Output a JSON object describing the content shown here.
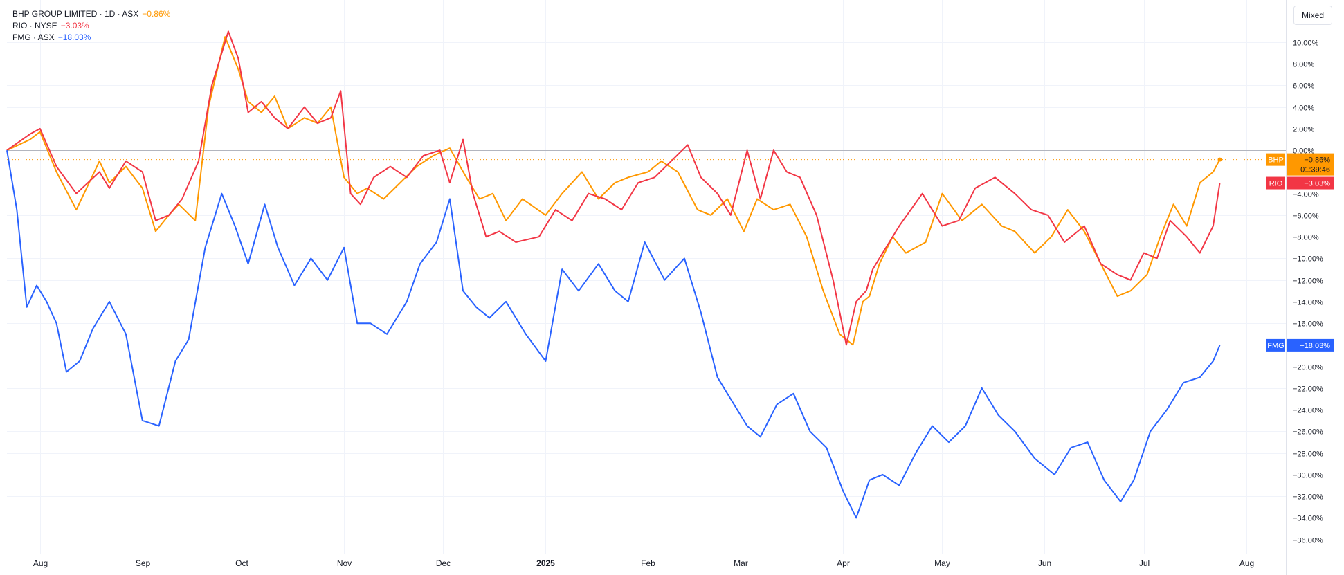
{
  "legend": {
    "bhp": {
      "label": "BHP GROUP LIMITED · 1D · ASX",
      "change": "−0.86%"
    },
    "rio": {
      "label": "RIO · NYSE",
      "change": "−3.03%"
    },
    "fmg": {
      "label": "FMG · ASX",
      "change": "−18.03%"
    }
  },
  "scale_mode_label": "Mixed",
  "countdown": "01:39:46",
  "chart_data": {
    "type": "line",
    "x_ticks": [
      "Aug",
      "Sep",
      "Oct",
      "Nov",
      "Dec",
      "2025",
      "Feb",
      "Mar",
      "Apr",
      "May",
      "Jun",
      "Jul",
      "Aug"
    ],
    "y_ticks": [
      "10.00%",
      "8.00%",
      "6.00%",
      "4.00%",
      "2.00%",
      "0.00%",
      "−2.00%",
      "−4.00%",
      "−6.00%",
      "−8.00%",
      "−10.00%",
      "−12.00%",
      "−14.00%",
      "−16.00%",
      "−18.00%",
      "−20.00%",
      "−22.00%",
      "−24.00%",
      "−26.00%",
      "−28.00%",
      "−30.00%",
      "−32.00%",
      "−34.00%",
      "−36.00%"
    ],
    "x_domain": [
      "2024-07-22",
      "2025-08-13"
    ],
    "y_domain": [
      -37.3,
      13.9
    ],
    "baseline": 0,
    "grid": true,
    "series": [
      {
        "name": "BHP",
        "color": "#ff9800",
        "last_label": "−0.86%",
        "x": [
          "2024-07-22",
          "2024-07-29",
          "2024-08-01",
          "2024-08-06",
          "2024-08-12",
          "2024-08-19",
          "2024-08-22",
          "2024-08-27",
          "2024-09-01",
          "2024-09-05",
          "2024-09-09",
          "2024-09-12",
          "2024-09-17",
          "2024-09-21",
          "2024-09-26",
          "2024-09-30",
          "2024-10-03",
          "2024-10-07",
          "2024-10-11",
          "2024-10-15",
          "2024-10-20",
          "2024-10-24",
          "2024-10-28",
          "2024-11-01",
          "2024-11-05",
          "2024-11-08",
          "2024-11-13",
          "2024-11-18",
          "2024-11-23",
          "2024-11-28",
          "2024-12-03",
          "2024-12-08",
          "2024-12-12",
          "2024-12-16",
          "2024-12-20",
          "2024-12-25",
          "2025-01-01",
          "2025-01-06",
          "2025-01-12",
          "2025-01-17",
          "2025-01-22",
          "2025-01-26",
          "2025-02-01",
          "2025-02-05",
          "2025-02-10",
          "2025-02-16",
          "2025-02-20",
          "2025-02-25",
          "2025-03-02",
          "2025-03-06",
          "2025-03-11",
          "2025-03-16",
          "2025-03-21",
          "2025-03-26",
          "2025-03-31",
          "2025-04-04",
          "2025-04-07",
          "2025-04-09",
          "2025-04-12",
          "2025-04-16",
          "2025-04-20",
          "2025-04-26",
          "2025-05-01",
          "2025-05-07",
          "2025-05-13",
          "2025-05-19",
          "2025-05-23",
          "2025-05-29",
          "2025-06-03",
          "2025-06-08",
          "2025-06-13",
          "2025-06-18",
          "2025-06-23",
          "2025-06-27",
          "2025-07-02",
          "2025-07-06",
          "2025-07-10",
          "2025-07-14",
          "2025-07-18",
          "2025-07-22",
          "2025-07-24"
        ],
        "y": [
          0.0,
          1.0,
          1.7,
          -2.0,
          -5.5,
          -1.0,
          -3.0,
          -1.5,
          -3.5,
          -7.5,
          -6.0,
          -5.0,
          -6.5,
          4.0,
          10.5,
          7.5,
          4.5,
          3.5,
          5.0,
          2.0,
          3.0,
          2.5,
          4.0,
          -2.5,
          -4.0,
          -3.5,
          -4.5,
          -3.0,
          -1.5,
          -0.5,
          0.2,
          -2.5,
          -4.5,
          -4.0,
          -6.5,
          -4.5,
          -6.0,
          -4.0,
          -2.0,
          -4.5,
          -3.0,
          -2.5,
          -2.0,
          -1.0,
          -2.0,
          -5.5,
          -6.0,
          -4.5,
          -7.5,
          -4.5,
          -5.5,
          -5.0,
          -8.0,
          -13.0,
          -17.0,
          -18.0,
          -14.0,
          -13.5,
          -10.5,
          -8.0,
          -9.5,
          -8.5,
          -4.0,
          -6.5,
          -5.0,
          -7.0,
          -7.5,
          -9.5,
          -8.0,
          -5.5,
          -7.5,
          -10.5,
          -13.5,
          -13.0,
          -11.5,
          -8.0,
          -5.0,
          -7.0,
          -3.0,
          -2.0,
          -0.86
        ]
      },
      {
        "name": "RIO",
        "color": "#f23645",
        "last_label": "−3.03%",
        "x": [
          "2024-07-22",
          "2024-07-29",
          "2024-08-01",
          "2024-08-06",
          "2024-08-12",
          "2024-08-19",
          "2024-08-22",
          "2024-08-27",
          "2024-09-01",
          "2024-09-05",
          "2024-09-09",
          "2024-09-13",
          "2024-09-18",
          "2024-09-22",
          "2024-09-27",
          "2024-09-30",
          "2024-10-03",
          "2024-10-07",
          "2024-10-11",
          "2024-10-15",
          "2024-10-20",
          "2024-10-24",
          "2024-10-28",
          "2024-10-31",
          "2024-11-03",
          "2024-11-06",
          "2024-11-10",
          "2024-11-15",
          "2024-11-20",
          "2024-11-25",
          "2024-11-30",
          "2024-12-03",
          "2024-12-07",
          "2024-12-10",
          "2024-12-14",
          "2024-12-18",
          "2024-12-23",
          "2024-12-30",
          "2025-01-04",
          "2025-01-09",
          "2025-01-14",
          "2025-01-19",
          "2025-01-24",
          "2025-01-29",
          "2025-02-03",
          "2025-02-08",
          "2025-02-13",
          "2025-02-17",
          "2025-02-22",
          "2025-02-26",
          "2025-03-03",
          "2025-03-07",
          "2025-03-11",
          "2025-03-15",
          "2025-03-19",
          "2025-03-24",
          "2025-03-29",
          "2025-04-02",
          "2025-04-05",
          "2025-04-08",
          "2025-04-10",
          "2025-04-13",
          "2025-04-18",
          "2025-04-25",
          "2025-05-01",
          "2025-05-06",
          "2025-05-11",
          "2025-05-17",
          "2025-05-23",
          "2025-05-28",
          "2025-06-02",
          "2025-06-07",
          "2025-06-13",
          "2025-06-18",
          "2025-06-23",
          "2025-06-27",
          "2025-07-01",
          "2025-07-05",
          "2025-07-09",
          "2025-07-14",
          "2025-07-18",
          "2025-07-22",
          "2025-07-24"
        ],
        "y": [
          0.0,
          1.5,
          2.0,
          -1.5,
          -4.0,
          -2.0,
          -3.5,
          -1.0,
          -2.0,
          -6.5,
          -6.0,
          -4.5,
          -1.0,
          6.0,
          11.0,
          8.5,
          3.5,
          4.5,
          3.0,
          2.0,
          4.0,
          2.5,
          3.0,
          5.5,
          -4.0,
          -5.0,
          -2.5,
          -1.5,
          -2.5,
          -0.5,
          0.0,
          -3.0,
          1.0,
          -4.0,
          -8.0,
          -7.5,
          -8.5,
          -8.0,
          -5.5,
          -6.5,
          -4.0,
          -4.5,
          -5.5,
          -3.0,
          -2.5,
          -1.0,
          0.5,
          -2.5,
          -4.0,
          -6.0,
          0.0,
          -4.5,
          0.0,
          -2.0,
          -2.5,
          -6.0,
          -12.0,
          -18.0,
          -14.0,
          -13.0,
          -11.0,
          -9.5,
          -7.0,
          -4.0,
          -7.0,
          -6.5,
          -3.5,
          -2.5,
          -4.0,
          -5.5,
          -6.0,
          -8.5,
          -7.0,
          -10.5,
          -11.5,
          -12.0,
          -9.5,
          -10.0,
          -6.5,
          -8.0,
          -9.5,
          -7.0,
          -3.03
        ]
      },
      {
        "name": "FMG",
        "color": "#2962ff",
        "last_label": "−18.03%",
        "x": [
          "2024-07-22",
          "2024-07-25",
          "2024-07-28",
          "2024-07-31",
          "2024-08-03",
          "2024-08-06",
          "2024-08-09",
          "2024-08-13",
          "2024-08-17",
          "2024-08-22",
          "2024-08-27",
          "2024-09-01",
          "2024-09-06",
          "2024-09-11",
          "2024-09-15",
          "2024-09-20",
          "2024-09-25",
          "2024-09-29",
          "2024-10-03",
          "2024-10-08",
          "2024-10-12",
          "2024-10-17",
          "2024-10-22",
          "2024-10-27",
          "2024-11-01",
          "2024-11-05",
          "2024-11-09",
          "2024-11-14",
          "2024-11-20",
          "2024-11-24",
          "2024-11-29",
          "2024-12-03",
          "2024-12-07",
          "2024-12-11",
          "2024-12-15",
          "2024-12-20",
          "2024-12-26",
          "2025-01-01",
          "2025-01-06",
          "2025-01-11",
          "2025-01-17",
          "2025-01-22",
          "2025-01-26",
          "2025-01-31",
          "2025-02-06",
          "2025-02-12",
          "2025-02-17",
          "2025-02-22",
          "2025-02-26",
          "2025-03-03",
          "2025-03-07",
          "2025-03-12",
          "2025-03-17",
          "2025-03-22",
          "2025-03-27",
          "2025-04-01",
          "2025-04-05",
          "2025-04-09",
          "2025-04-13",
          "2025-04-18",
          "2025-04-23",
          "2025-04-28",
          "2025-05-03",
          "2025-05-08",
          "2025-05-13",
          "2025-05-18",
          "2025-05-23",
          "2025-05-29",
          "2025-06-04",
          "2025-06-09",
          "2025-06-14",
          "2025-06-19",
          "2025-06-24",
          "2025-06-28",
          "2025-07-03",
          "2025-07-08",
          "2025-07-13",
          "2025-07-18",
          "2025-07-22",
          "2025-07-24"
        ],
        "y": [
          0.0,
          -5.5,
          -14.5,
          -12.5,
          -14.0,
          -16.0,
          -20.5,
          -19.5,
          -16.5,
          -14.0,
          -17.0,
          -25.0,
          -25.5,
          -19.5,
          -17.5,
          -9.0,
          -4.0,
          -7.0,
          -10.5,
          -5.0,
          -9.0,
          -12.5,
          -10.0,
          -12.0,
          -9.0,
          -16.0,
          -16.0,
          -17.0,
          -14.0,
          -10.5,
          -8.5,
          -4.5,
          -13.0,
          -14.5,
          -15.5,
          -14.0,
          -17.0,
          -19.5,
          -11.0,
          -13.0,
          -10.5,
          -13.0,
          -14.0,
          -8.5,
          -12.0,
          -10.0,
          -15.0,
          -21.0,
          -23.0,
          -25.5,
          -26.5,
          -23.5,
          -22.5,
          -26.0,
          -27.5,
          -31.5,
          -34.0,
          -30.5,
          -30.0,
          -31.0,
          -28.0,
          -25.5,
          -27.0,
          -25.5,
          -22.0,
          -24.5,
          -26.0,
          -28.5,
          -30.0,
          -27.5,
          -27.0,
          -30.5,
          -32.5,
          -30.5,
          -26.0,
          -24.0,
          -21.5,
          -21.0,
          -19.5,
          -18.03
        ]
      }
    ]
  }
}
